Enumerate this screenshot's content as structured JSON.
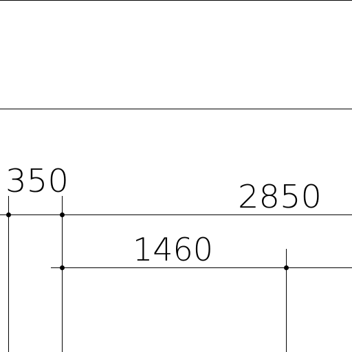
{
  "drawing": {
    "type": "technical-dimension-drawing",
    "line_color": "#000000",
    "background_color": "#ffffff",
    "dimensions": {
      "d350": "350",
      "d2850": "2850",
      "d1460": "1460"
    }
  }
}
